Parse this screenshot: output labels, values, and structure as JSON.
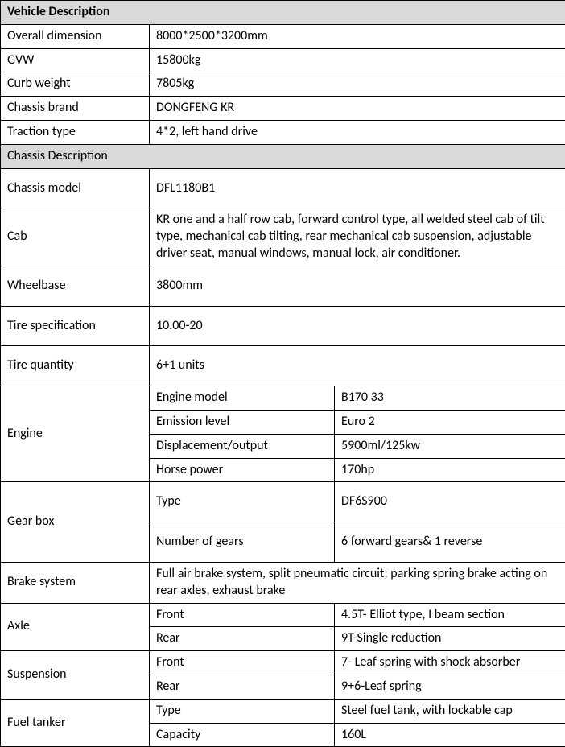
{
  "vehicleDescription": {
    "title": "Vehicle Description",
    "rows": [
      {
        "label": "Overall dimension",
        "value": "8000*2500*3200mm"
      },
      {
        "label": "GVW",
        "value": "15800kg"
      },
      {
        "label": "Curb weight",
        "value": "7805kg"
      },
      {
        "label": "Chassis brand",
        "value": "DONGFENG KR"
      },
      {
        "label": "Traction type",
        "value": "4*2, left hand drive"
      }
    ]
  },
  "chassisDescription": {
    "title": "Chassis Description",
    "chassisModel": {
      "label": "Chassis model",
      "value": "DFL1180B1"
    },
    "cab": {
      "label": "Cab",
      "value": "KR one and a half row cab, forward control type, all welded steel cab of tilt type, mechanical cab tilting, rear mechanical cab suspension, adjustable driver seat, manual windows, manual lock, air conditioner."
    },
    "wheelbase": {
      "label": "Wheelbase",
      "value": "3800mm"
    },
    "tireSpec": {
      "label": "Tire specification",
      "value": "10.00-20"
    },
    "tireQty": {
      "label": "Tire quantity",
      "value": "6+1 units"
    },
    "engine": {
      "label": "Engine",
      "rows": [
        {
          "sub": "Engine model",
          "value": "B170 33"
        },
        {
          "sub": "Emission level",
          "value": "Euro 2"
        },
        {
          "sub": "Displacement/output",
          "value": "5900ml/125kw"
        },
        {
          "sub": "Horse power",
          "value": "170hp"
        }
      ]
    },
    "gearbox": {
      "label": "Gear box",
      "rows": [
        {
          "sub": "Type",
          "value": "DF6S900"
        },
        {
          "sub": "Number of gears",
          "value": "6 forward gears& 1 reverse"
        }
      ]
    },
    "brake": {
      "label": "Brake system",
      "value": "Full air brake system, split pneumatic circuit; parking spring brake acting on rear axles, exhaust brake"
    },
    "axle": {
      "label": "Axle",
      "rows": [
        {
          "sub": "Front",
          "value": "4.5T- Elliot type, I beam section"
        },
        {
          "sub": "Rear",
          "value": "9T-Single reduction"
        }
      ]
    },
    "suspension": {
      "label": "Suspension",
      "rows": [
        {
          "sub": "Front",
          "value": "7- Leaf spring with shock absorber"
        },
        {
          "sub": "Rear",
          "value": "9+6-Leaf spring"
        }
      ]
    },
    "fuel": {
      "label": "Fuel tanker",
      "rows": [
        {
          "sub": "Type",
          "value": "Steel fuel tank, with lockable cap"
        },
        {
          "sub": "Capacity",
          "value": "160L"
        }
      ]
    }
  }
}
